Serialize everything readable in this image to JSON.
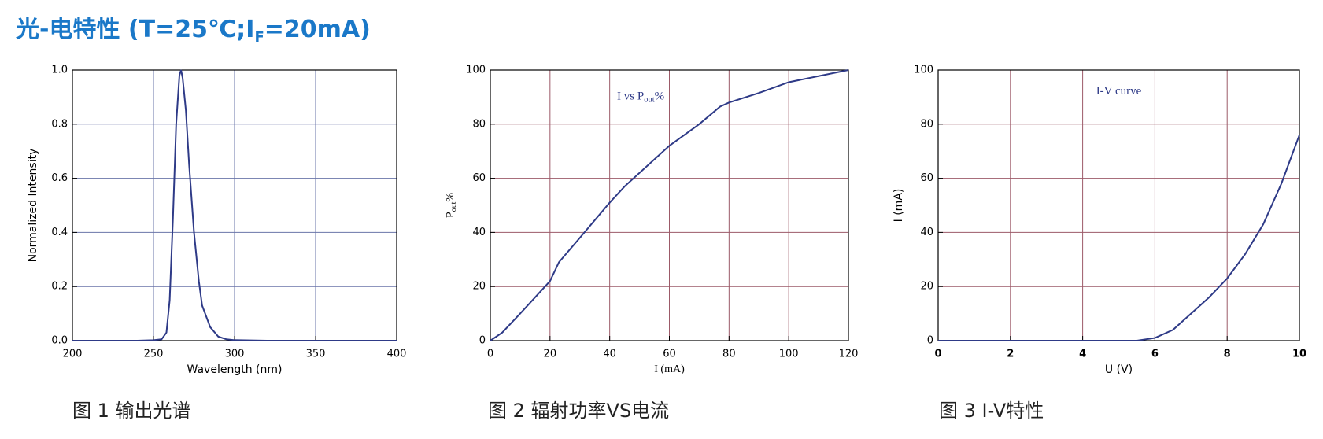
{
  "title": {
    "main": "光-电特性 (T=25℃;I",
    "subscript": "F",
    "rest": "=20mA)"
  },
  "chart_data": [
    {
      "type": "line",
      "caption": "图 1 输出光谱",
      "xlabel": "Wavelength (nm)",
      "ylabel": "Normalized Intensity",
      "x": [
        200,
        240,
        250,
        255,
        258,
        260,
        262,
        264,
        266,
        267,
        268,
        270,
        272,
        275,
        278,
        280,
        285,
        290,
        295,
        300,
        320,
        400
      ],
      "series": [
        {
          "color": "#2e3a87",
          "values": [
            0,
            0,
            0.002,
            0.005,
            0.03,
            0.15,
            0.45,
            0.8,
            0.98,
            1.0,
            0.97,
            0.85,
            0.65,
            0.4,
            0.22,
            0.13,
            0.05,
            0.015,
            0.005,
            0.002,
            0,
            0
          ]
        }
      ],
      "xlim": [
        200,
        400
      ],
      "xticks": [
        200,
        250,
        300,
        350,
        400
      ],
      "ylim": [
        0,
        1
      ],
      "yticks": [
        {
          "value": 0,
          "label": "0.0"
        },
        {
          "value": 0.2,
          "label": "0.2"
        },
        {
          "value": 0.4,
          "label": "0.4"
        },
        {
          "value": 0.6,
          "label": "0.6"
        },
        {
          "value": 0.8,
          "label": "0.8"
        },
        {
          "value": 1,
          "label": "1.0"
        }
      ],
      "grid": true,
      "grid_color": "#6a74a8"
    },
    {
      "type": "line",
      "caption": "图 2 辐射功率VS电流",
      "xlabel": "I (mA)",
      "ylabel": {
        "main": "P",
        "subscript": "out",
        "rest": "%"
      },
      "annotation": {
        "main": "I vs P",
        "subscript": "out",
        "rest": "%"
      },
      "x": [
        0,
        4,
        10,
        20,
        23,
        30,
        40,
        45,
        60,
        70,
        77,
        80,
        90,
        100,
        120
      ],
      "series": [
        {
          "color": "#2e3a87",
          "values": [
            0,
            3,
            10,
            22,
            29,
            38,
            51,
            57,
            72,
            80,
            86.5,
            88,
            91.5,
            95.5,
            100
          ]
        }
      ],
      "xlim": [
        0,
        120
      ],
      "xticks": [
        0,
        20,
        40,
        60,
        80,
        100,
        120
      ],
      "ylim": [
        0,
        100
      ],
      "yticks": [
        0,
        20,
        40,
        60,
        80,
        100
      ],
      "grid": true,
      "grid_color": "#9c5a68"
    },
    {
      "type": "line",
      "caption": "图 3 I-V特性",
      "xlabel": "U (V)",
      "ylabel": "I (mA)",
      "annotation": "I-V curve",
      "x": [
        0,
        5.5,
        6,
        6.5,
        7,
        7.5,
        8,
        8.5,
        9,
        9.5,
        10
      ],
      "series": [
        {
          "color": "#2e3a87",
          "values": [
            0,
            0,
            1,
            4,
            10,
            16,
            23,
            32,
            43,
            58,
            76
          ]
        }
      ],
      "xlim": [
        0,
        10
      ],
      "xticks": [
        0,
        2,
        4,
        6,
        8,
        10
      ],
      "ylim": [
        0,
        100
      ],
      "yticks": [
        0,
        20,
        40,
        60,
        80,
        100
      ],
      "grid": true,
      "grid_color": "#9c5a68"
    }
  ]
}
